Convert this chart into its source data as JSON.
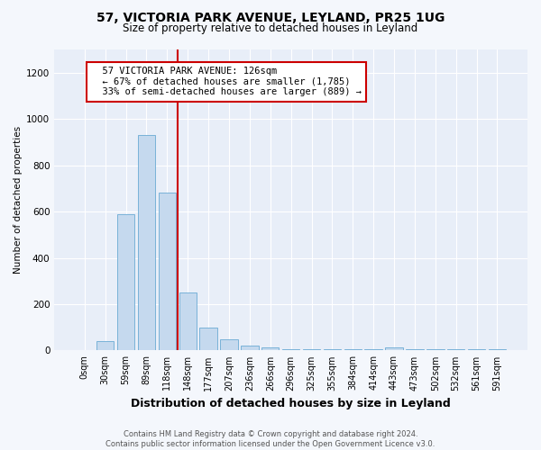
{
  "title1": "57, VICTORIA PARK AVENUE, LEYLAND, PR25 1UG",
  "title2": "Size of property relative to detached houses in Leyland",
  "xlabel": "Distribution of detached houses by size in Leyland",
  "ylabel": "Number of detached properties",
  "bar_labels": [
    "0sqm",
    "30sqm",
    "59sqm",
    "89sqm",
    "118sqm",
    "148sqm",
    "177sqm",
    "207sqm",
    "236sqm",
    "266sqm",
    "296sqm",
    "325sqm",
    "355sqm",
    "384sqm",
    "414sqm",
    "443sqm",
    "473sqm",
    "502sqm",
    "532sqm",
    "561sqm",
    "591sqm"
  ],
  "bar_values": [
    0,
    42,
    590,
    930,
    680,
    250,
    100,
    50,
    20,
    13,
    5,
    5,
    5,
    5,
    5,
    12,
    5,
    5,
    5,
    5,
    5
  ],
  "bar_color": "#c5d9ee",
  "bar_edgecolor": "#6aaad4",
  "property_size": 126,
  "annotation_text": "  57 VICTORIA PARK AVENUE: 126sqm\n  ← 67% of detached houses are smaller (1,785)\n  33% of semi-detached houses are larger (889) →",
  "annotation_box_color": "#ffffff",
  "annotation_box_edge": "#cc0000",
  "line_color": "#cc0000",
  "ylim": [
    0,
    1300
  ],
  "yticks": [
    0,
    200,
    400,
    600,
    800,
    1000,
    1200
  ],
  "footer_text": "Contains HM Land Registry data © Crown copyright and database right 2024.\nContains public sector information licensed under the Open Government Licence v3.0.",
  "bg_color": "#f4f7fc",
  "plot_bg_color": "#e8eef8",
  "grid_color": "#ffffff",
  "title1_fontsize": 10,
  "title2_fontsize": 8.5,
  "ylabel_fontsize": 7.5,
  "xlabel_fontsize": 9,
  "tick_fontsize": 7,
  "annotation_fontsize": 7.5,
  "footer_fontsize": 6
}
